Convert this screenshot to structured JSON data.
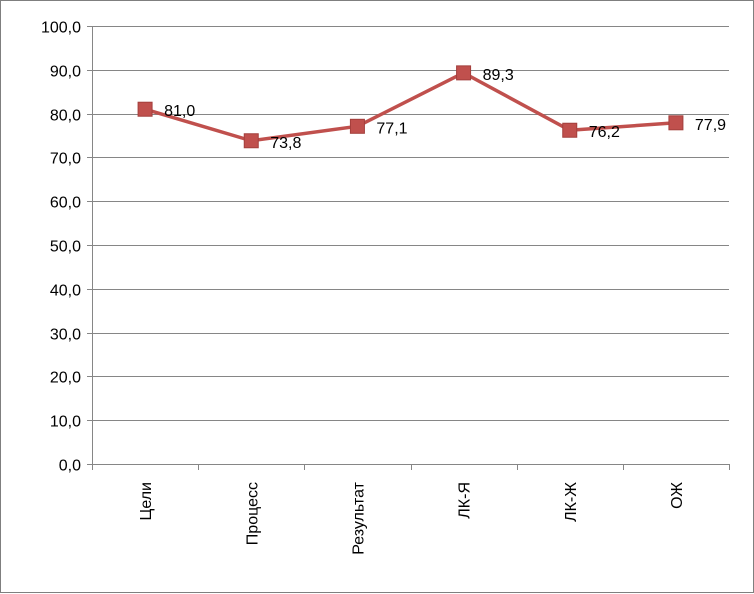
{
  "chart_data": {
    "type": "line",
    "categories": [
      "Цели",
      "Процесс",
      "Результат",
      "ЛК-Я",
      "ЛК-Ж",
      "ОЖ"
    ],
    "series": [
      {
        "values": [
          81.0,
          73.8,
          77.1,
          89.3,
          76.2,
          77.9
        ],
        "labels": [
          "81,0",
          "73,8",
          "77,1",
          "89,3",
          "76,2",
          "77,9"
        ],
        "color": "#c0504d"
      }
    ],
    "ylim": [
      0,
      100
    ],
    "yticks": [
      0,
      10,
      20,
      30,
      40,
      50,
      60,
      70,
      80,
      90,
      100
    ],
    "ytick_labels": [
      "0,0",
      "10,0",
      "20,0",
      "30,0",
      "40,0",
      "50,0",
      "60,0",
      "70,0",
      "80,0",
      "90,0",
      "100,0"
    ],
    "grid": true,
    "legend": "none",
    "marker": "square",
    "gridline_color": "#868686"
  }
}
